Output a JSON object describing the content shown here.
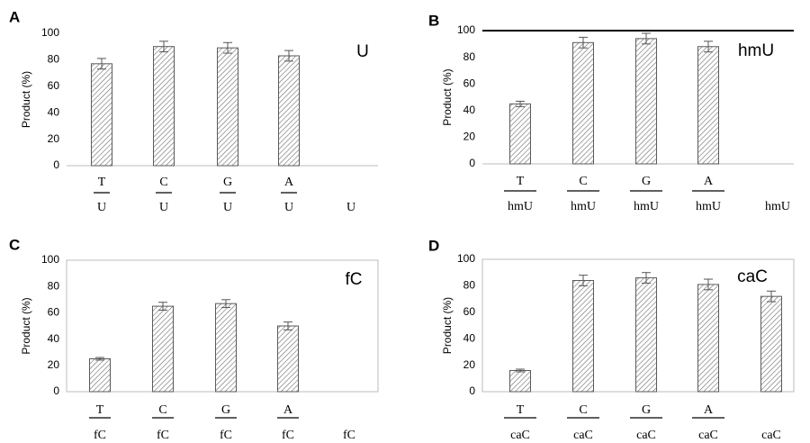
{
  "chart_data": [
    {
      "type": "bar",
      "panel": "A",
      "corner_label": "U",
      "ylabel": "Product (%)",
      "ylim": [
        0,
        100
      ],
      "yticks": [
        "0",
        "20",
        "40",
        "60",
        "80",
        "100"
      ],
      "categories": [
        {
          "top": "T",
          "bottom": "U"
        },
        {
          "top": "C",
          "bottom": "U"
        },
        {
          "top": "G",
          "bottom": "U"
        },
        {
          "top": "A",
          "bottom": "U"
        },
        {
          "top": "",
          "bottom": "U"
        }
      ],
      "values": [
        77,
        90,
        89,
        83,
        null
      ],
      "errors": [
        4,
        4,
        4,
        4,
        null
      ],
      "frame": false
    },
    {
      "type": "bar",
      "panel": "B",
      "corner_label": "hmU",
      "ylabel": "Product (%)",
      "ylim": [
        0,
        100
      ],
      "yticks": [
        "0",
        "20",
        "40",
        "60",
        "80",
        "100"
      ],
      "categories": [
        {
          "top": "T",
          "bottom": "hmU"
        },
        {
          "top": "C",
          "bottom": "hmU"
        },
        {
          "top": "G",
          "bottom": "hmU"
        },
        {
          "top": "A",
          "bottom": "hmU"
        },
        {
          "top": "",
          "bottom": "hmU"
        }
      ],
      "values": [
        45,
        91,
        94,
        88,
        null
      ],
      "errors": [
        2,
        4,
        4,
        4,
        null
      ],
      "frame": "top"
    },
    {
      "type": "bar",
      "panel": "C",
      "corner_label": "fC",
      "ylabel": "Product (%)",
      "ylim": [
        0,
        100
      ],
      "yticks": [
        "0",
        "20",
        "40",
        "60",
        "80",
        "100"
      ],
      "categories": [
        {
          "top": "T",
          "bottom": "fC"
        },
        {
          "top": "C",
          "bottom": "fC"
        },
        {
          "top": "G",
          "bottom": "fC"
        },
        {
          "top": "A",
          "bottom": "fC"
        },
        {
          "top": "",
          "bottom": "fC"
        }
      ],
      "values": [
        25,
        65,
        67,
        50,
        null
      ],
      "errors": [
        1,
        3,
        3,
        3,
        null
      ],
      "frame": "box"
    },
    {
      "type": "bar",
      "panel": "D",
      "corner_label": "caC",
      "ylabel": "Product (%)",
      "ylim": [
        0,
        100
      ],
      "yticks": [
        "0",
        "20",
        "40",
        "60",
        "80",
        "100"
      ],
      "categories": [
        {
          "top": "T",
          "bottom": "caC"
        },
        {
          "top": "C",
          "bottom": "caC"
        },
        {
          "top": "G",
          "bottom": "caC"
        },
        {
          "top": "A",
          "bottom": "caC"
        },
        {
          "top": "",
          "bottom": "caC"
        }
      ],
      "values": [
        16,
        84,
        86,
        81,
        72
      ],
      "errors": [
        1,
        4,
        4,
        4,
        4
      ],
      "frame": "box"
    }
  ]
}
